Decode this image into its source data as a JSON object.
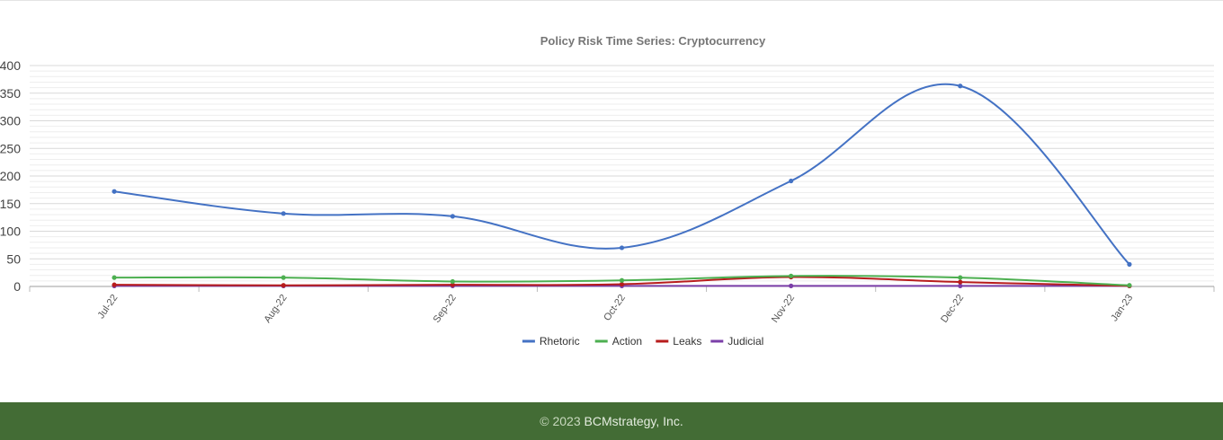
{
  "chart_data": {
    "type": "line",
    "title": "Policy Risk Time Series: Cryptocurrency",
    "categories": [
      "Jul-22",
      "Aug-22",
      "Sep-22",
      "Oct-22",
      "Nov-22",
      "Dec-22",
      "Jan-23"
    ],
    "ylim": [
      0,
      400
    ],
    "yticks": [
      0,
      50,
      100,
      150,
      200,
      250,
      300,
      350,
      400
    ],
    "grid": true,
    "legend_position": "bottom",
    "series": [
      {
        "name": "Rhetoric",
        "color": "#4472c4",
        "values": [
          172,
          132,
          127,
          70,
          191,
          363,
          40
        ]
      },
      {
        "name": "Action",
        "color": "#4caf50",
        "values": [
          16,
          16,
          9,
          11,
          19,
          16,
          2
        ]
      },
      {
        "name": "Leaks",
        "color": "#b71c1c",
        "values": [
          3,
          2,
          3,
          4,
          17,
          8,
          1
        ]
      },
      {
        "name": "Judicial",
        "color": "#7b3fa8",
        "values": [
          1,
          1,
          1,
          1,
          1,
          1,
          1
        ]
      }
    ]
  },
  "footer": {
    "copyright_symbol": "©",
    "year": "2023",
    "company": "BCMstrategy, Inc."
  }
}
